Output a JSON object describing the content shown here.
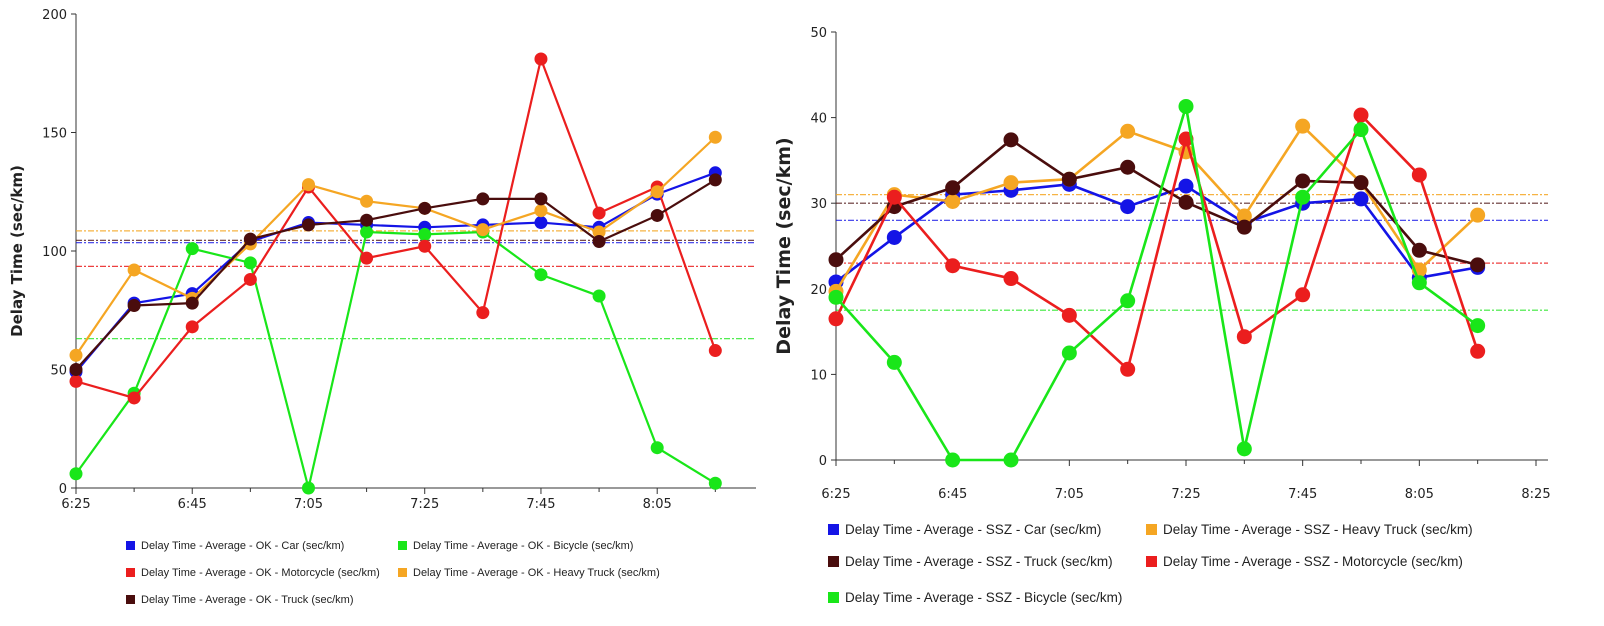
{
  "chart_data": [
    {
      "type": "line",
      "title": "",
      "xlabel": "",
      "ylabel": "Delay Time (sec/km)",
      "ylim": [
        0,
        200
      ],
      "y_ticks": [
        "0",
        "50",
        "100",
        "150",
        "200"
      ],
      "x_ticks": [
        "6:25",
        "6:45",
        "7:05",
        "7:25",
        "7:45",
        "8:05"
      ],
      "x_minutes": [
        0,
        20,
        40,
        60,
        80,
        100
      ],
      "x_range": [
        0,
        117
      ],
      "legend_position": "bottom",
      "series": [
        {
          "name": "Delay Time - Average - OK - Car (sec/km)",
          "color": "#1414e6",
          "average": 103.5,
          "x": [
            0,
            10,
            20,
            30,
            40,
            50,
            60,
            70,
            80,
            90,
            100,
            110
          ],
          "values": [
            49,
            78,
            82,
            104,
            112,
            111,
            110,
            111,
            112,
            110,
            124,
            133
          ]
        },
        {
          "name": "Delay Time - Average - OK - Bicycle (sec/km)",
          "color": "#19e619",
          "average": 63,
          "x": [
            0,
            10,
            20,
            30,
            40,
            50,
            60,
            70,
            80,
            90,
            100,
            110
          ],
          "values": [
            6,
            40,
            101,
            95,
            0,
            108,
            107,
            108,
            90,
            81,
            17,
            2
          ]
        },
        {
          "name": "Delay Time - Average - OK - Motorcycle (sec/km)",
          "color": "#eb1e1e",
          "average": 93.5,
          "x": [
            0,
            10,
            20,
            30,
            40,
            50,
            60,
            70,
            80,
            90,
            100,
            110
          ],
          "values": [
            45,
            38,
            68,
            88,
            127,
            97,
            102,
            74,
            181,
            116,
            127,
            58
          ]
        },
        {
          "name": "Delay Time - Average - OK - Heavy Truck (sec/km)",
          "color": "#f5a623",
          "average": 108.5,
          "x": [
            0,
            10,
            20,
            30,
            40,
            50,
            60,
            70,
            80,
            90,
            100,
            110
          ],
          "values": [
            56,
            92,
            80,
            103,
            128,
            121,
            118,
            109,
            117,
            108,
            125,
            148
          ]
        },
        {
          "name": "Delay Time - Average - OK - Truck (sec/km)",
          "color": "#4a0d0d",
          "average": 104.5,
          "x": [
            0,
            10,
            20,
            30,
            40,
            50,
            60,
            70,
            80,
            90,
            100,
            110
          ],
          "values": [
            50,
            77,
            78,
            105,
            111,
            113,
            118,
            122,
            122,
            104,
            115,
            130
          ]
        }
      ]
    },
    {
      "type": "line",
      "title": "",
      "xlabel": "",
      "ylabel": "Delay Time (sec/km)",
      "ylim": [
        0,
        50
      ],
      "y_ticks": [
        "0",
        "10",
        "20",
        "30",
        "40",
        "50"
      ],
      "x_ticks": [
        "6:25",
        "6:45",
        "7:05",
        "7:25",
        "7:45",
        "8:05",
        "8:25"
      ],
      "x_minutes": [
        0,
        20,
        40,
        60,
        80,
        100,
        120
      ],
      "x_range": [
        0,
        120
      ],
      "legend_position": "bottom",
      "series": [
        {
          "name": "Delay Time - Average - SSZ - Car (sec/km)",
          "color": "#1414e6",
          "average": 28,
          "x": [
            0,
            10,
            20,
            30,
            40,
            50,
            60,
            70,
            80,
            90,
            100,
            110
          ],
          "values": [
            20.8,
            26,
            31,
            31.5,
            32.2,
            29.6,
            32,
            27.7,
            30,
            30.5,
            21.3,
            22.5
          ]
        },
        {
          "name": "Delay Time - Average - SSZ - Heavy Truck (sec/km)",
          "color": "#f5a623",
          "average": 31,
          "x": [
            0,
            10,
            20,
            30,
            40,
            50,
            60,
            70,
            80,
            90,
            100,
            110
          ],
          "values": [
            19.7,
            31,
            30.2,
            32.4,
            32.8,
            38.4,
            36,
            28.5,
            39,
            32.4,
            22.2,
            28.6
          ]
        },
        {
          "name": "Delay Time - Average - SSZ - Truck (sec/km)",
          "color": "#4a0d0d",
          "average": 30,
          "x": [
            0,
            10,
            20,
            30,
            40,
            50,
            60,
            70,
            80,
            90,
            100,
            110
          ],
          "values": [
            23.4,
            29.6,
            31.8,
            37.4,
            32.8,
            34.2,
            30.1,
            27.2,
            32.6,
            32.4,
            24.5,
            22.8
          ]
        },
        {
          "name": "Delay Time - Average - SSZ - Motorcycle (sec/km)",
          "color": "#eb1e1e",
          "average": 23,
          "x": [
            0,
            10,
            20,
            30,
            40,
            50,
            60,
            70,
            80,
            90,
            100,
            110
          ],
          "values": [
            16.5,
            30.7,
            22.7,
            21.2,
            16.9,
            10.6,
            37.5,
            14.4,
            19.3,
            40.3,
            33.3,
            12.7
          ]
        },
        {
          "name": "Delay Time - Average - SSZ - Bicycle (sec/km)",
          "color": "#19e619",
          "average": 17.5,
          "x": [
            0,
            10,
            20,
            30,
            40,
            50,
            60,
            70,
            80,
            90,
            100,
            110
          ],
          "values": [
            19,
            11.4,
            0,
            0,
            12.5,
            18.6,
            41.3,
            1.3,
            30.7,
            38.6,
            20.7,
            15.7
          ]
        }
      ]
    }
  ]
}
